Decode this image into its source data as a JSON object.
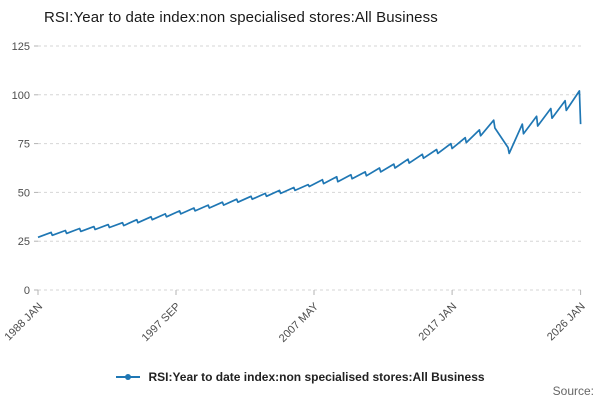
{
  "page": {
    "title": "RSI:Year to date index:non specialised stores:All Business",
    "source_label": "Source:"
  },
  "legend": {
    "label": "RSI:Year to date index:non specialised stores:All Business"
  },
  "chart_data": {
    "type": "line",
    "title": "RSI:Year to date index:non specialised stores:All Business",
    "grid": "horizontal-dashed",
    "grid_color": "#d6d6d6",
    "tick_color": "#b3b3b3",
    "xlim": [
      1988.0,
      2026.1
    ],
    "ylim": [
      0,
      125
    ],
    "y_ticks": [
      0,
      25,
      50,
      75,
      100,
      125
    ],
    "x_ticks": [
      {
        "pos": 1988.0,
        "label": "1988 JAN"
      },
      {
        "pos": 1997.667,
        "label": "1997 SEP"
      },
      {
        "pos": 2007.333,
        "label": "2007 MAY"
      },
      {
        "pos": 2017.0,
        "label": "2017 JAN"
      },
      {
        "pos": 2026.0,
        "label": "2026 JAN"
      }
    ],
    "series": [
      {
        "name": "RSI:Year to date index:non specialised stores:All Business",
        "color": "#1f77b4",
        "note": "year-to-date index; jan = January YTD value, dec = December YTD value, sawtooth resets each January",
        "years": [
          {
            "year": 1988,
            "jan": 27,
            "dec": 29.5
          },
          {
            "year": 1989,
            "jan": 28,
            "dec": 30.5
          },
          {
            "year": 1990,
            "jan": 29,
            "dec": 31.5
          },
          {
            "year": 1991,
            "jan": 30,
            "dec": 32.5
          },
          {
            "year": 1992,
            "jan": 31,
            "dec": 33.5
          },
          {
            "year": 1993,
            "jan": 32,
            "dec": 34.5
          },
          {
            "year": 1994,
            "jan": 33,
            "dec": 36
          },
          {
            "year": 1995,
            "jan": 34.5,
            "dec": 37.5
          },
          {
            "year": 1996,
            "jan": 36,
            "dec": 39
          },
          {
            "year": 1997,
            "jan": 37.5,
            "dec": 40.5
          },
          {
            "year": 1998,
            "jan": 39,
            "dec": 42
          },
          {
            "year": 1999,
            "jan": 40.5,
            "dec": 43.5
          },
          {
            "year": 2000,
            "jan": 42,
            "dec": 45
          },
          {
            "year": 2001,
            "jan": 43.5,
            "dec": 46.5
          },
          {
            "year": 2002,
            "jan": 45,
            "dec": 48
          },
          {
            "year": 2003,
            "jan": 46.5,
            "dec": 49.5
          },
          {
            "year": 2004,
            "jan": 48,
            "dec": 51
          },
          {
            "year": 2005,
            "jan": 49.5,
            "dec": 52.5
          },
          {
            "year": 2006,
            "jan": 51,
            "dec": 54
          },
          {
            "year": 2007,
            "jan": 53,
            "dec": 56.5
          },
          {
            "year": 2008,
            "jan": 54.5,
            "dec": 58
          },
          {
            "year": 2009,
            "jan": 55.5,
            "dec": 59
          },
          {
            "year": 2010,
            "jan": 57,
            "dec": 60.5
          },
          {
            "year": 2011,
            "jan": 58.5,
            "dec": 62.5
          },
          {
            "year": 2012,
            "jan": 60.5,
            "dec": 64.5
          },
          {
            "year": 2013,
            "jan": 62.5,
            "dec": 67
          },
          {
            "year": 2014,
            "jan": 65,
            "dec": 69.5
          },
          {
            "year": 2015,
            "jan": 67.5,
            "dec": 72
          },
          {
            "year": 2016,
            "jan": 70,
            "dec": 75
          },
          {
            "year": 2017,
            "jan": 72.5,
            "dec": 78
          },
          {
            "year": 2018,
            "jan": 75.5,
            "dec": 82
          },
          {
            "year": 2019,
            "jan": 79,
            "dec": 87
          },
          {
            "year": 2020,
            "jan": 83,
            "dec": 73
          },
          {
            "year": 2021,
            "jan": 70,
            "dec": 85
          },
          {
            "year": 2022,
            "jan": 80,
            "dec": 89
          },
          {
            "year": 2023,
            "jan": 84,
            "dec": 93
          },
          {
            "year": 2024,
            "jan": 88,
            "dec": 97
          },
          {
            "year": 2025,
            "jan": 92,
            "dec": 102
          },
          {
            "year": 2026,
            "jan": 85
          }
        ]
      }
    ]
  }
}
